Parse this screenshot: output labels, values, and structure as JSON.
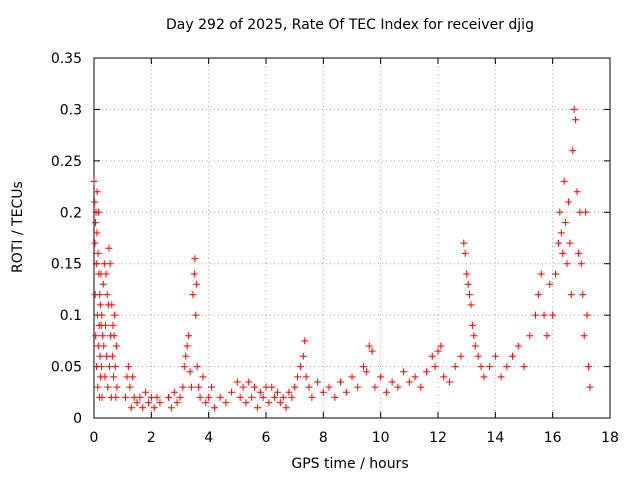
{
  "chart_data": {
    "type": "scatter",
    "title": "Day 292 of 2025, Rate Of TEC Index for receiver djig",
    "xlabel": "GPS time / hours",
    "ylabel": "ROTI / TECUs",
    "xlim": [
      0,
      18
    ],
    "ylim": [
      0,
      0.35
    ],
    "xticks": [
      "0",
      "2",
      "4",
      "6",
      "8",
      "10",
      "12",
      "14",
      "16",
      "18"
    ],
    "yticks": [
      "0",
      "0.05",
      "0.1",
      "0.15",
      "0.2",
      "0.25",
      "0.3",
      "0.35"
    ],
    "grid": true,
    "marker": "+",
    "color": "#ff0000",
    "series": [
      {
        "name": "ROTI",
        "points": [
          [
            0.0,
            0.23
          ],
          [
            0.02,
            0.21
          ],
          [
            0.03,
            0.17
          ],
          [
            0.04,
            0.12
          ],
          [
            0.05,
            0.19
          ],
          [
            0.06,
            0.08
          ],
          [
            0.07,
            0.2
          ],
          [
            0.08,
            0.15
          ],
          [
            0.09,
            0.05
          ],
          [
            0.1,
            0.18
          ],
          [
            0.11,
            0.22
          ],
          [
            0.12,
            0.1
          ],
          [
            0.13,
            0.03
          ],
          [
            0.14,
            0.16
          ],
          [
            0.15,
            0.07
          ],
          [
            0.16,
            0.2
          ],
          [
            0.17,
            0.14
          ],
          [
            0.18,
            0.09
          ],
          [
            0.19,
            0.02
          ],
          [
            0.2,
            0.12
          ],
          [
            0.21,
            0.06
          ],
          [
            0.22,
            0.11
          ],
          [
            0.23,
            0.04
          ],
          [
            0.24,
            0.14
          ],
          [
            0.25,
            0.09
          ],
          [
            0.26,
            0.05
          ],
          [
            0.27,
            0.1
          ],
          [
            0.28,
            0.02
          ],
          [
            0.3,
            0.08
          ],
          [
            0.32,
            0.13
          ],
          [
            0.34,
            0.07
          ],
          [
            0.36,
            0.15
          ],
          [
            0.38,
            0.04
          ],
          [
            0.4,
            0.09
          ],
          [
            0.42,
            0.14
          ],
          [
            0.44,
            0.06
          ],
          [
            0.46,
            0.12
          ],
          [
            0.48,
            0.03
          ],
          [
            0.5,
            0.11
          ],
          [
            0.52,
            0.165
          ],
          [
            0.54,
            0.05
          ],
          [
            0.56,
            0.15
          ],
          [
            0.58,
            0.08
          ],
          [
            0.6,
            0.02
          ],
          [
            0.62,
            0.11
          ],
          [
            0.64,
            0.06
          ],
          [
            0.66,
            0.09
          ],
          [
            0.68,
            0.04
          ],
          [
            0.7,
            0.08
          ],
          [
            0.72,
            0.1
          ],
          [
            0.74,
            0.05
          ],
          [
            0.76,
            0.02
          ],
          [
            0.78,
            0.07
          ],
          [
            0.8,
            0.03
          ],
          [
            1.1,
            0.02
          ],
          [
            1.15,
            0.04
          ],
          [
            1.2,
            0.05
          ],
          [
            1.25,
            0.03
          ],
          [
            1.3,
            0.01
          ],
          [
            1.35,
            0.04
          ],
          [
            1.4,
            0.02
          ],
          [
            1.5,
            0.015
          ],
          [
            1.6,
            0.02
          ],
          [
            1.7,
            0.01
          ],
          [
            1.8,
            0.025
          ],
          [
            1.9,
            0.015
          ],
          [
            2.0,
            0.02
          ],
          [
            2.1,
            0.01
          ],
          [
            2.2,
            0.02
          ],
          [
            2.3,
            0.015
          ],
          [
            2.6,
            0.02
          ],
          [
            2.7,
            0.01
          ],
          [
            2.8,
            0.025
          ],
          [
            2.9,
            0.015
          ],
          [
            3.0,
            0.02
          ],
          [
            3.1,
            0.03
          ],
          [
            3.15,
            0.05
          ],
          [
            3.2,
            0.06
          ],
          [
            3.25,
            0.07
          ],
          [
            3.3,
            0.08
          ],
          [
            3.35,
            0.045
          ],
          [
            3.4,
            0.03
          ],
          [
            3.45,
            0.12
          ],
          [
            3.5,
            0.14
          ],
          [
            3.52,
            0.155
          ],
          [
            3.55,
            0.1
          ],
          [
            3.58,
            0.13
          ],
          [
            3.6,
            0.05
          ],
          [
            3.65,
            0.03
          ],
          [
            3.7,
            0.02
          ],
          [
            3.8,
            0.04
          ],
          [
            3.9,
            0.015
          ],
          [
            4.0,
            0.02
          ],
          [
            4.1,
            0.03
          ],
          [
            4.2,
            0.01
          ],
          [
            4.4,
            0.02
          ],
          [
            4.6,
            0.015
          ],
          [
            4.8,
            0.025
          ],
          [
            5.0,
            0.035
          ],
          [
            5.1,
            0.02
          ],
          [
            5.2,
            0.03
          ],
          [
            5.3,
            0.015
          ],
          [
            5.4,
            0.035
          ],
          [
            5.5,
            0.02
          ],
          [
            5.6,
            0.03
          ],
          [
            5.7,
            0.01
          ],
          [
            5.8,
            0.025
          ],
          [
            5.9,
            0.02
          ],
          [
            6.0,
            0.03
          ],
          [
            6.1,
            0.015
          ],
          [
            6.2,
            0.03
          ],
          [
            6.3,
            0.02
          ],
          [
            6.4,
            0.025
          ],
          [
            6.5,
            0.015
          ],
          [
            6.6,
            0.02
          ],
          [
            6.7,
            0.01
          ],
          [
            6.8,
            0.025
          ],
          [
            6.9,
            0.02
          ],
          [
            7.0,
            0.03
          ],
          [
            7.1,
            0.04
          ],
          [
            7.2,
            0.05
          ],
          [
            7.3,
            0.06
          ],
          [
            7.35,
            0.075
          ],
          [
            7.4,
            0.04
          ],
          [
            7.5,
            0.03
          ],
          [
            7.6,
            0.02
          ],
          [
            7.8,
            0.035
          ],
          [
            8.0,
            0.025
          ],
          [
            8.2,
            0.03
          ],
          [
            8.4,
            0.02
          ],
          [
            8.6,
            0.035
          ],
          [
            8.8,
            0.025
          ],
          [
            9.0,
            0.04
          ],
          [
            9.2,
            0.03
          ],
          [
            9.4,
            0.05
          ],
          [
            9.5,
            0.045
          ],
          [
            9.6,
            0.07
          ],
          [
            9.7,
            0.065
          ],
          [
            9.8,
            0.03
          ],
          [
            10.0,
            0.04
          ],
          [
            10.2,
            0.025
          ],
          [
            10.4,
            0.035
          ],
          [
            10.6,
            0.03
          ],
          [
            10.8,
            0.045
          ],
          [
            11.0,
            0.035
          ],
          [
            11.2,
            0.04
          ],
          [
            11.4,
            0.03
          ],
          [
            11.6,
            0.045
          ],
          [
            11.8,
            0.06
          ],
          [
            11.9,
            0.05
          ],
          [
            12.0,
            0.065
          ],
          [
            12.1,
            0.07
          ],
          [
            12.2,
            0.04
          ],
          [
            12.4,
            0.035
          ],
          [
            12.6,
            0.05
          ],
          [
            12.8,
            0.06
          ],
          [
            12.9,
            0.17
          ],
          [
            12.95,
            0.16
          ],
          [
            13.0,
            0.14
          ],
          [
            13.05,
            0.13
          ],
          [
            13.1,
            0.12
          ],
          [
            13.15,
            0.11
          ],
          [
            13.2,
            0.09
          ],
          [
            13.25,
            0.08
          ],
          [
            13.3,
            0.07
          ],
          [
            13.4,
            0.06
          ],
          [
            13.5,
            0.05
          ],
          [
            13.6,
            0.04
          ],
          [
            13.8,
            0.05
          ],
          [
            14.0,
            0.06
          ],
          [
            14.2,
            0.04
          ],
          [
            14.4,
            0.05
          ],
          [
            14.6,
            0.06
          ],
          [
            14.8,
            0.07
          ],
          [
            15.0,
            0.05
          ],
          [
            15.2,
            0.08
          ],
          [
            15.4,
            0.1
          ],
          [
            15.5,
            0.12
          ],
          [
            15.6,
            0.14
          ],
          [
            15.7,
            0.1
          ],
          [
            15.8,
            0.08
          ],
          [
            15.9,
            0.13
          ],
          [
            16.0,
            0.1
          ],
          [
            16.1,
            0.14
          ],
          [
            16.2,
            0.17
          ],
          [
            16.25,
            0.2
          ],
          [
            16.3,
            0.18
          ],
          [
            16.35,
            0.16
          ],
          [
            16.4,
            0.23
          ],
          [
            16.45,
            0.19
          ],
          [
            16.5,
            0.15
          ],
          [
            16.55,
            0.21
          ],
          [
            16.6,
            0.17
          ],
          [
            16.65,
            0.12
          ],
          [
            16.7,
            0.26
          ],
          [
            16.75,
            0.3
          ],
          [
            16.8,
            0.29
          ],
          [
            16.85,
            0.22
          ],
          [
            16.9,
            0.16
          ],
          [
            16.95,
            0.2
          ],
          [
            17.0,
            0.15
          ],
          [
            17.05,
            0.12
          ],
          [
            17.1,
            0.08
          ],
          [
            17.15,
            0.2
          ],
          [
            17.2,
            0.1
          ],
          [
            17.25,
            0.05
          ],
          [
            17.3,
            0.03
          ]
        ]
      }
    ]
  }
}
